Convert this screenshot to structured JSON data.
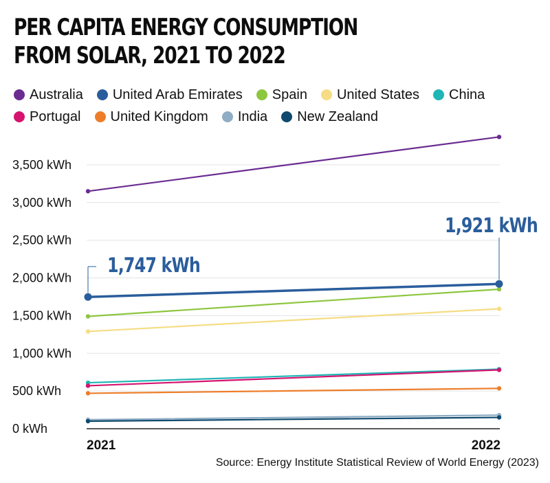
{
  "chart_data": {
    "type": "line",
    "title_lines": [
      "PER CAPITA ENERGY CONSUMPTION",
      "FROM SOLAR, 2021 TO 2022"
    ],
    "categories": [
      "2021",
      "2022"
    ],
    "ylim": [
      0,
      3800
    ],
    "yticks": [
      0,
      500,
      1000,
      1500,
      2000,
      2500,
      3000,
      3500
    ],
    "ytick_labels": [
      "0 kWh",
      "500 kWh",
      "1,000 kWh",
      "1,500 kWh",
      "2,000 kWh",
      "2,500 kWh",
      "3,000 kWh",
      "3,500 kWh"
    ],
    "grid": true,
    "series": [
      {
        "name": "Australia",
        "color": "#6a2c91",
        "values": [
          3150,
          3870
        ]
      },
      {
        "name": "United Arab Emirates",
        "color": "#2a5d9c",
        "values": [
          1747,
          1921
        ],
        "highlight": true
      },
      {
        "name": "Spain",
        "color": "#8dc63f",
        "values": [
          1490,
          1850
        ]
      },
      {
        "name": "United States",
        "color": "#f6dc84",
        "values": [
          1290,
          1590
        ]
      },
      {
        "name": "China",
        "color": "#1fb5b5",
        "values": [
          610,
          790
        ]
      },
      {
        "name": "Portugal",
        "color": "#d4146f",
        "values": [
          570,
          780
        ]
      },
      {
        "name": "United Kingdom",
        "color": "#ee7d2a",
        "values": [
          470,
          535
        ]
      },
      {
        "name": "India",
        "color": "#8fadc4",
        "values": [
          120,
          180
        ]
      },
      {
        "name": "New Zealand",
        "color": "#0f4a6e",
        "values": [
          100,
          150
        ]
      }
    ],
    "annotations": [
      {
        "text": "1,747 kWh",
        "series": "United Arab Emirates",
        "category": "2021"
      },
      {
        "text": "1,921 kWh",
        "series": "United Arab Emirates",
        "category": "2022"
      }
    ]
  },
  "legend_rows": [
    [
      "Australia",
      "United Arab Emirates",
      "Spain",
      "United States",
      "China"
    ],
    [
      "Portugal",
      "United Kingdom",
      "India",
      "New Zealand"
    ]
  ],
  "source": "Source: Energy Institute Statistical Review of World Energy (2023)"
}
